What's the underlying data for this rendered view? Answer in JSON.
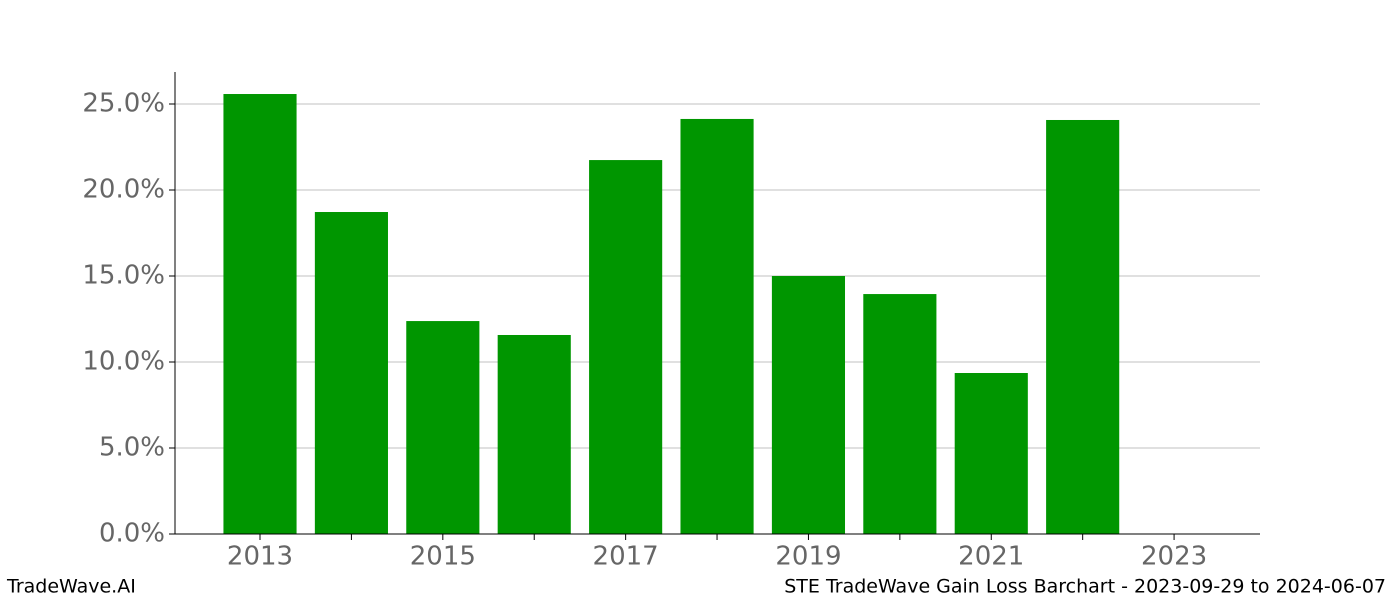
{
  "chart_data": {
    "type": "bar",
    "x": [
      2013,
      2014,
      2015,
      2016,
      2017,
      2018,
      2019,
      2020,
      2021,
      2022
    ],
    "values": [
      25.58,
      18.72,
      12.38,
      11.57,
      21.74,
      24.13,
      15.0,
      13.95,
      9.36,
      24.07
    ],
    "color": "#009600",
    "xlim": [
      2012.07,
      2023.94
    ],
    "xticks": [
      2013,
      2015,
      2017,
      2019,
      2021,
      2023
    ],
    "xminorticks": [
      2014,
      2016,
      2018,
      2020,
      2022
    ],
    "ylim": [
      0,
      26.86
    ],
    "yticks": [
      {
        "value": 0,
        "label": "0.0%"
      },
      {
        "value": 5,
        "label": "5.0%"
      },
      {
        "value": 10,
        "label": "10.0%"
      },
      {
        "value": 15,
        "label": "15.0%"
      },
      {
        "value": 20,
        "label": "20.0%"
      },
      {
        "value": 25,
        "label": "25.0%"
      }
    ],
    "grid": true,
    "watermark": "TradeWave.AI",
    "title": "STE TradeWave Gain Loss Barchart - 2023-09-29 to 2024-06-07"
  }
}
